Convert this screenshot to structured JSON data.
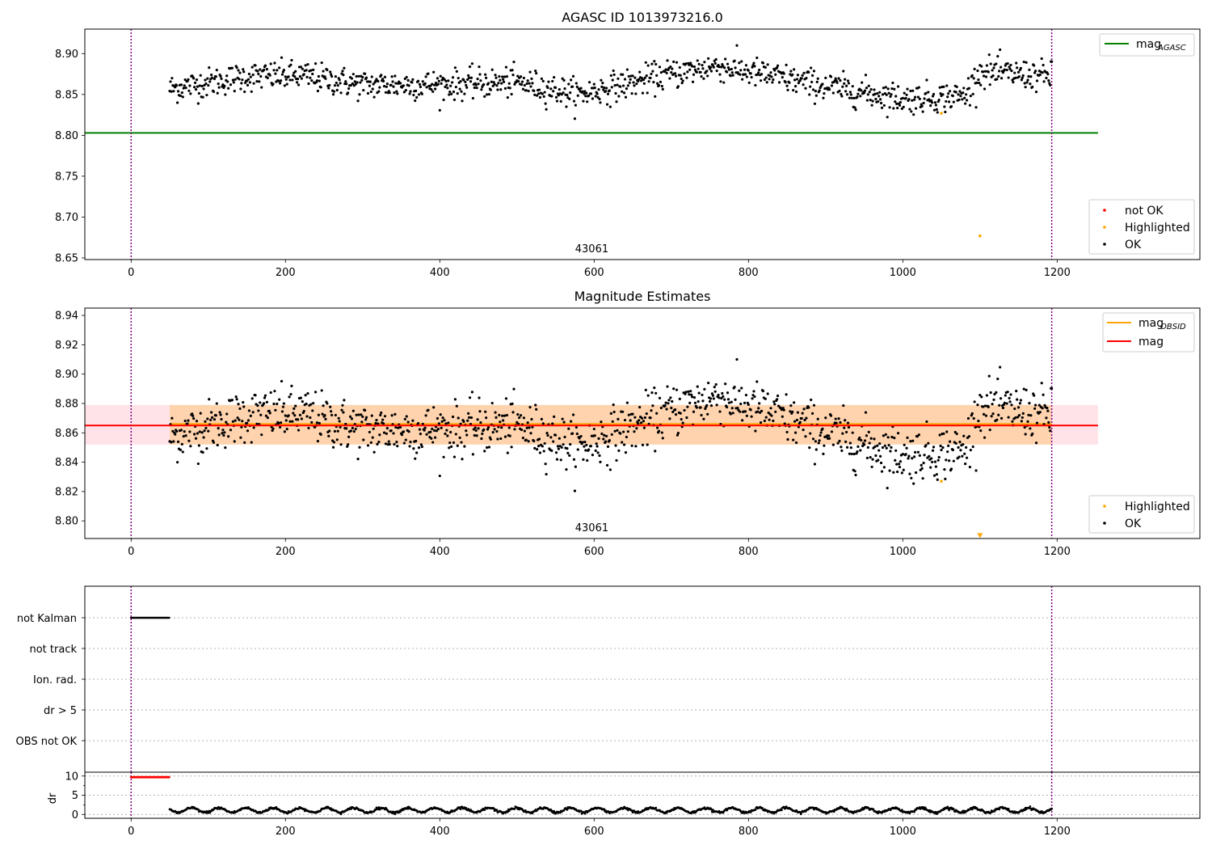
{
  "figure": {
    "title": "AGASC ID 1013973216.0",
    "obsid_label": "43061"
  },
  "chart_data": [
    {
      "type": "scatter",
      "title": "",
      "xlim": [
        -60,
        1385
      ],
      "ylim": [
        8.648,
        8.93
      ],
      "xticks": [
        0,
        200,
        400,
        600,
        800,
        1000,
        1200
      ],
      "yticks": [
        8.65,
        8.7,
        8.75,
        8.8,
        8.85,
        8.9
      ],
      "ytick_labels": [
        "8.65",
        "8.70",
        "8.75",
        "8.80",
        "8.85",
        "8.90"
      ],
      "vlines": [
        0,
        1193
      ],
      "hline": {
        "y": 8.803,
        "x_range": [
          -60,
          1253
        ],
        "color": "#008000"
      },
      "ok_points": {
        "x_range": [
          50,
          1193
        ],
        "count": 1144,
        "trend": [
          [
            50,
            8.857
          ],
          [
            150,
            8.872
          ],
          [
            220,
            8.873
          ],
          [
            300,
            8.862
          ],
          [
            400,
            8.862
          ],
          [
            500,
            8.865
          ],
          [
            580,
            8.85
          ],
          [
            700,
            8.875
          ],
          [
            760,
            8.885
          ],
          [
            900,
            8.86
          ],
          [
            1000,
            8.845
          ],
          [
            1080,
            8.848
          ],
          [
            1100,
            8.878
          ],
          [
            1193,
            8.872
          ]
        ]
      },
      "highlighted_points": [
        {
          "x": 1050,
          "y": 8.827
        },
        {
          "x": 1100,
          "y": 8.677
        }
      ],
      "legend_lines": [
        {
          "label_main": "mag",
          "label_sub": "AGASC",
          "color": "#008000"
        }
      ],
      "legend_markers": [
        {
          "label": "not OK",
          "color": "#ff0000"
        },
        {
          "label": "Highlighted",
          "color": "#ffa500"
        },
        {
          "label": "OK",
          "color": "#000000"
        }
      ]
    },
    {
      "type": "scatter",
      "title": "Magnitude Estimates",
      "xlim": [
        -60,
        1385
      ],
      "ylim": [
        8.788,
        8.945
      ],
      "xticks": [
        0,
        200,
        400,
        600,
        800,
        1000,
        1200
      ],
      "yticks": [
        8.8,
        8.82,
        8.84,
        8.86,
        8.88,
        8.9,
        8.92,
        8.94
      ],
      "ytick_labels": [
        "8.80",
        "8.82",
        "8.84",
        "8.86",
        "8.88",
        "8.90",
        "8.92",
        "8.94"
      ],
      "vlines": [
        0,
        1193
      ],
      "band": {
        "y0": 8.852,
        "y1": 8.879,
        "x_range": [
          -60,
          1253
        ],
        "outer_color": "#ffc0cb",
        "inner_color": "#ffa500",
        "inner_x_range": [
          50,
          1193
        ]
      },
      "mag_line": {
        "y": 8.865,
        "x_range": [
          -60,
          1253
        ],
        "color": "#ff0000"
      },
      "mag_obsid_line": {
        "y": 8.866,
        "x_range": [
          50,
          1193
        ],
        "color": "#ffa500"
      },
      "ok_points": {
        "x_range": [
          50,
          1193
        ],
        "count": 1144,
        "trend": [
          [
            50,
            8.857
          ],
          [
            150,
            8.872
          ],
          [
            220,
            8.873
          ],
          [
            300,
            8.862
          ],
          [
            400,
            8.862
          ],
          [
            500,
            8.865
          ],
          [
            580,
            8.85
          ],
          [
            700,
            8.875
          ],
          [
            760,
            8.885
          ],
          [
            900,
            8.86
          ],
          [
            1000,
            8.845
          ],
          [
            1080,
            8.848
          ],
          [
            1100,
            8.878
          ],
          [
            1193,
            8.872
          ]
        ]
      },
      "highlighted_points": [
        {
          "x": 1050,
          "y": 8.827
        }
      ],
      "offscale_marker": {
        "x": 1100,
        "y": 8.79,
        "color": "#ffa500"
      },
      "legend_lines": [
        {
          "label_main": "mag",
          "label_sub": "OBSID",
          "color": "#ffa500"
        },
        {
          "label_main": "mag",
          "label_sub": "",
          "color": "#ff0000"
        }
      ],
      "legend_markers": [
        {
          "label": "Highlighted",
          "color": "#ffa500"
        },
        {
          "label": "OK",
          "color": "#000000"
        }
      ]
    },
    {
      "type": "scatter",
      "title": "",
      "xlim": [
        -60,
        1385
      ],
      "categories": [
        "not Kalman",
        "not track",
        "Ion. rad.",
        "dr > 5",
        "OBS not OK"
      ],
      "flag_segments": [
        {
          "category": "not Kalman",
          "x_range": [
            0,
            50
          ]
        }
      ]
    },
    {
      "type": "scatter",
      "title": "",
      "xlim": [
        -60,
        1385
      ],
      "ylim": [
        -1,
        11
      ],
      "yticks": [
        0,
        5,
        10
      ],
      "ytick_labels": [
        "0",
        "5",
        "10"
      ],
      "xticks": [
        0,
        200,
        400,
        600,
        800,
        1000,
        1200
      ],
      "ylabel": "dr",
      "red_segment": {
        "x_range": [
          0,
          50
        ],
        "y": 9.7
      },
      "dr_points": {
        "x_range": [
          50,
          1193
        ],
        "count": 1144,
        "mean": 1.1
      }
    }
  ],
  "colors": {
    "purple_vline": "#800080",
    "grid_dotted": "#b0b0b0"
  }
}
